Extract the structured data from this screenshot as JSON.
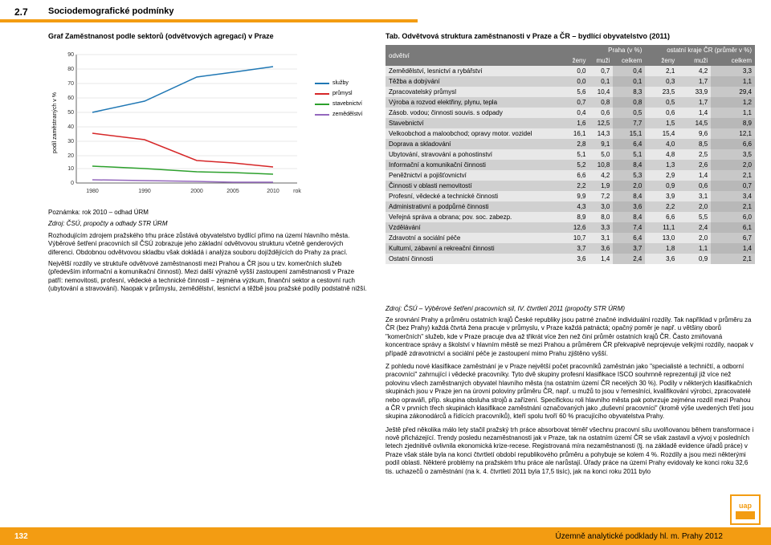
{
  "header": {
    "page_number": "2.7",
    "title": "Sociodemografické podmínky"
  },
  "chart": {
    "title": "Graf Zaměstnanost podle sektorů (odvětvových agregací) v Praze",
    "type": "line",
    "ylabel": "podíl zaměstnaných v %",
    "xlabel": "rok",
    "x_values": [
      1980,
      1990,
      2000,
      2005,
      2010
    ],
    "ylim": [
      0,
      90
    ],
    "ytick_step": 10,
    "series": [
      {
        "name": "služby",
        "color": "#1f77b4",
        "values": [
          50,
          58,
          75,
          78,
          82
        ]
      },
      {
        "name": "průmysl",
        "color": "#d62728",
        "values": [
          35,
          30,
          16,
          14,
          11
        ]
      },
      {
        "name": "stavebnictví",
        "color": "#2ca02c",
        "values": [
          12,
          10,
          8,
          7,
          6
        ]
      },
      {
        "name": "zemědělství",
        "color": "#9467bd",
        "values": [
          2,
          1.5,
          0.8,
          0.6,
          0.4
        ]
      }
    ],
    "grid_color": "#d0d0d0",
    "background_color": "#ffffff"
  },
  "chart_notes": {
    "note1": "Poznámka: rok 2010 – odhad ÚRM",
    "note2": "Zdroj: ČSÚ, propočty a odhady STR ÚRM",
    "para1": "Rozhodujícím zdrojem pražského trhu práce zůstává obyvatelstvo bydlící přímo na území hlavního města. Výběrové šetření pracovních sil ČSÚ zobrazuje jeho základní odvětvovou strukturu včetně genderových diferenci. Obdobnou odvětvovou skladbu však dokládá i analýza souboru dojíždějících do Prahy za prací.",
    "para2": "Největší rozdíly ve struktuře odvětvové zaměstnanosti mezi Prahou a ČR jsou u tzv. komerčních služeb (především informační a komunikační činnosti). Mezi další výrazně vyšší zastoupení zaměstnanosti v Praze patří: nemovitosti, profesní, vědecké a technické činnosti – zejména výzkum, finanční sektor a cestovní ruch (ubytování a stravování). Naopak v průmyslu, zemědělství, lesnictví a těžbě jsou pražské podíly podstatně nižší."
  },
  "table": {
    "title": "Tab. Odvětvová struktura zaměstnanosti v Praze a ČR – bydlící obyvatelstvo (2011)",
    "header_group1": "Praha (v %)",
    "header_group2": "ostatní kraje ČR (průměr v %)",
    "col_odvetvi": "odvětví",
    "col_zeny": "ženy",
    "col_muzi": "muži",
    "col_celkem": "celkem",
    "rows": [
      {
        "label": "Zemědělství, lesnictví a rybářství",
        "v": [
          "0,0",
          "0,7",
          "0,4",
          "2,1",
          "4,2",
          "3,3"
        ]
      },
      {
        "label": "Těžba a dobývání",
        "v": [
          "0,0",
          "0,1",
          "0,1",
          "0,3",
          "1,7",
          "1,1"
        ]
      },
      {
        "label": "Zpracovatelský průmysl",
        "v": [
          "5,6",
          "10,4",
          "8,3",
          "23,5",
          "33,9",
          "29,4"
        ]
      },
      {
        "label": "Výroba a rozvod elektřiny, plynu, tepla",
        "v": [
          "0,7",
          "0,8",
          "0,8",
          "0,5",
          "1,7",
          "1,2"
        ]
      },
      {
        "label": "Zásob. vodou; činnosti souvis. s odpady",
        "v": [
          "0,4",
          "0,6",
          "0,5",
          "0,6",
          "1,4",
          "1,1"
        ]
      },
      {
        "label": "Stavebnictví",
        "v": [
          "1,6",
          "12,5",
          "7,7",
          "1,5",
          "14,5",
          "8,9"
        ]
      },
      {
        "label": "Velkoobchod a maloobchod; opravy motor. vozidel",
        "v": [
          "16,1",
          "14,3",
          "15,1",
          "15,4",
          "9,6",
          "12,1"
        ]
      },
      {
        "label": "Doprava a skladování",
        "v": [
          "2,8",
          "9,1",
          "6,4",
          "4,0",
          "8,5",
          "6,6"
        ]
      },
      {
        "label": "Ubytování, stravování a pohostinství",
        "v": [
          "5,1",
          "5,0",
          "5,1",
          "4,8",
          "2,5",
          "3,5"
        ]
      },
      {
        "label": "Informační a komunikační činnosti",
        "v": [
          "5,2",
          "10,8",
          "8,4",
          "1,3",
          "2,6",
          "2,0"
        ]
      },
      {
        "label": "Peněžnictví a pojišťovnictví",
        "v": [
          "6,6",
          "4,2",
          "5,3",
          "2,9",
          "1,4",
          "2,1"
        ]
      },
      {
        "label": "Činnosti v oblasti nemovitostí",
        "v": [
          "2,2",
          "1,9",
          "2,0",
          "0,9",
          "0,6",
          "0,7"
        ]
      },
      {
        "label": "Profesní, vědecké a technické činnosti",
        "v": [
          "9,9",
          "7,2",
          "8,4",
          "3,9",
          "3,1",
          "3,4"
        ]
      },
      {
        "label": "Administrativní a podpůrné činnosti",
        "v": [
          "4,3",
          "3,0",
          "3,6",
          "2,2",
          "2,0",
          "2,1"
        ]
      },
      {
        "label": "Veřejná správa a obrana; pov. soc. zabezp.",
        "v": [
          "8,9",
          "8,0",
          "8,4",
          "6,6",
          "5,5",
          "6,0"
        ]
      },
      {
        "label": "Vzdělávání",
        "v": [
          "12,6",
          "3,3",
          "7,4",
          "11,1",
          "2,4",
          "6,1"
        ]
      },
      {
        "label": "Zdravotní a sociální péče",
        "v": [
          "10,7",
          "3,1",
          "6,4",
          "13,0",
          "2,0",
          "6,7"
        ]
      },
      {
        "label": "Kulturní, zábavní a rekreační činnosti",
        "v": [
          "3,7",
          "3,6",
          "3,7",
          "1,8",
          "1,1",
          "1,4"
        ]
      },
      {
        "label": "Ostatní činnosti",
        "v": [
          "3,6",
          "1,4",
          "2,4",
          "3,6",
          "0,9",
          "2,1"
        ]
      }
    ],
    "source": "Zdroj: ČSÚ – Výběrové šetření pracovních sil, IV. čtvrtletí 2011 (propočty STR ÚRM)"
  },
  "right_paragraphs": {
    "p1": "Ze srovnání Prahy a průměru ostatních krajů České republiky jsou patrné značné individuální rozdíly. Tak například v průměru za ČR (bez Prahy) každá čtvrtá žena pracuje v průmyslu, v Praze každá patnáctá; opačný poměr je např. u většiny oborů \"komerčních\" služeb, kde v Praze pracuje dva až třikrát více žen než činí průměr ostatních krajů ČR. Často zmiňovaná koncentrace správy a školství v hlavním městě se mezi Prahou a průměrem ČR překvapivě neprojevuje velkými rozdíly, naopak v případě zdravotnictví a sociální péče je zastoupení mimo Prahu zjištěno vyšší.",
    "p2": "Z pohledu nové klasifikace zaměstnání je v Praze největší počet pracovníků zaměstnán jako \"specialisté a techničtí, a odborní pracovníci\" zahrnující i vědecké pracovníky. Tyto dvě skupiny profesní klasifikace ISCO souhrnně reprezentují již více než polovinu všech zaměstnaných obyvatel hlavního města (na ostatním území ČR necelých 30 %). Podíly v některých klasifikačních skupinách jsou v Praze jen na úrovni poloviny průměru ČR, např. u mužů to jsou v řemeslníci, kvalifikování výrobci, zpracovatelé nebo opraváři, příp. skupina obsluha strojů a zařízení. Specifickou roli hlavního města pak potvrzuje zejména rozdíl mezi Prahou a ČR v prvních třech skupinách klasifikace zaměstnání označovaných jako „duševní pracovníci\" (kromě výše uvedených třetí jsou skupina zákonodárců a řídících pracovníků), kteří spolu tvoří 60 % pracujícího obyvatelstva Prahy.",
    "p3": "Ještě před několika málo lety stačil pražský trh práce absorbovat téměř všechnu pracovní sílu uvolňovanou během transformace i nově přicházející. Trendy posledu nezaměstnanosti jak v Praze, tak na ostatním území ČR se však zastavil a vývoj v posledních letech zjednitivě ovlivnila ekonomická krize-recese. Registrovaná míra nezaměstnanosti (tj. na základě evidence úřadů práce) v Praze však stále byla na konci čtvrtletí období republikového průměru a pohybuje se kolem 4 %. Rozdíly a jsou mezi některými podíl oblasti. Některé problémy na pražském trhu práce ale narůstají. Úřady práce na území Prahy evidovaly ke konci roku 32,6 tis. uchazečů o zaměstnání (na k. 4. čtvrtletí 2011 byla 17,5 tisíc), jak na konci roku 2011 bylo"
  },
  "footer": {
    "page": "132",
    "title": "Územně analytické podklady hl. m. Prahy 2012"
  }
}
